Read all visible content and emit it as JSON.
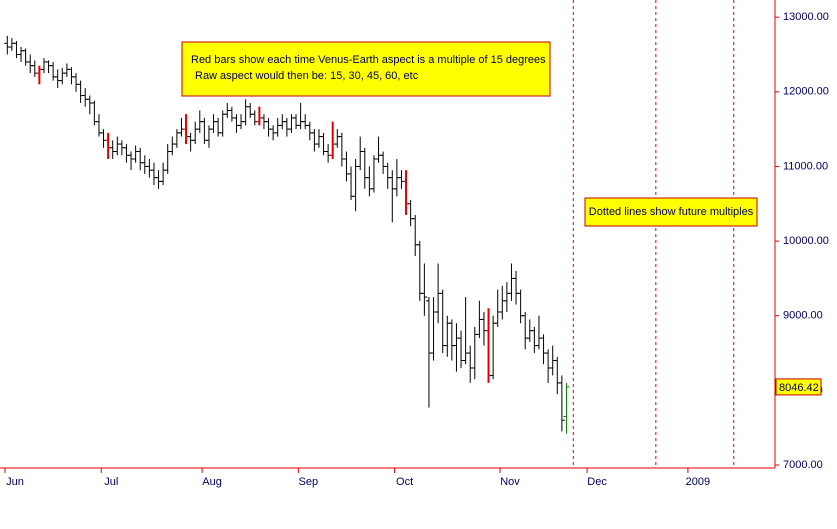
{
  "chart_data": {
    "type": "ohlc",
    "annotations": [
      "Red bars show each time Venus-Earth aspect is a multiple of 15 degrees",
      "Raw aspect would then be: 15, 30, 45, 60, etc",
      "Dotted lines show future multiples"
    ],
    "categories": [
      "Jun",
      null,
      null,
      null,
      null,
      null,
      null,
      null,
      null,
      null,
      null,
      null,
      null,
      null,
      null,
      null,
      null,
      null,
      null,
      null,
      null,
      "Jul",
      null,
      null,
      null,
      null,
      null,
      null,
      null,
      null,
      null,
      null,
      null,
      null,
      null,
      null,
      null,
      null,
      null,
      null,
      null,
      null,
      null,
      "Aug",
      null,
      null,
      null,
      null,
      null,
      null,
      null,
      null,
      null,
      null,
      null,
      null,
      null,
      null,
      null,
      null,
      null,
      null,
      null,
      null,
      "Sep",
      null,
      null,
      null,
      null,
      null,
      null,
      null,
      null,
      null,
      null,
      null,
      null,
      null,
      null,
      null,
      null,
      null,
      null,
      null,
      null,
      "Oct",
      null,
      null,
      null,
      null,
      null,
      null,
      null,
      null,
      null,
      null,
      null,
      null,
      null,
      null,
      null,
      null,
      null,
      null,
      null,
      null,
      null,
      null,
      "Nov",
      null,
      null,
      null,
      null,
      null,
      null,
      null,
      null,
      null,
      null,
      null,
      null,
      null,
      null,
      null,
      null,
      null,
      null,
      "Dec",
      null,
      null,
      null,
      null,
      null,
      null,
      null,
      null,
      null,
      null,
      null,
      null,
      null,
      null,
      null,
      null,
      null,
      null,
      null,
      null,
      null,
      "2009",
      null,
      null,
      null,
      null,
      null,
      null,
      null,
      null,
      null,
      null,
      null,
      null,
      null,
      null,
      null,
      null,
      null,
      null
    ],
    "ohlc": [
      [
        12650,
        12750,
        12500,
        12600
      ],
      [
        12600,
        12720,
        12550,
        12650
      ],
      [
        12650,
        12680,
        12450,
        12500
      ],
      [
        12500,
        12600,
        12400,
        12550
      ],
      [
        12550,
        12580,
        12350,
        12400
      ],
      [
        12400,
        12500,
        12250,
        12350
      ],
      [
        12350,
        12420,
        12200,
        12250
      ],
      [
        12250,
        12350,
        12100,
        12300
      ],
      [
        12300,
        12450,
        12250,
        12400
      ],
      [
        12400,
        12420,
        12250,
        12350
      ],
      [
        12350,
        12400,
        12150,
        12200
      ],
      [
        12200,
        12300,
        12050,
        12150
      ],
      [
        12150,
        12320,
        12100,
        12250
      ],
      [
        12250,
        12380,
        12200,
        12300
      ],
      [
        12300,
        12330,
        12100,
        12200
      ],
      [
        12200,
        12250,
        12000,
        12100
      ],
      [
        12100,
        12150,
        11850,
        11950
      ],
      [
        11950,
        12050,
        11800,
        11900
      ],
      [
        11900,
        11950,
        11700,
        11850
      ],
      [
        11850,
        11880,
        11550,
        11600
      ],
      [
        11600,
        11700,
        11400,
        11450
      ],
      [
        11450,
        11500,
        11250,
        11350
      ],
      [
        11350,
        11450,
        11100,
        11250
      ],
      [
        11250,
        11350,
        11100,
        11200
      ],
      [
        11200,
        11400,
        11150,
        11300
      ],
      [
        11300,
        11350,
        11150,
        11250
      ],
      [
        11250,
        11300,
        11050,
        11150
      ],
      [
        11150,
        11200,
        10950,
        11100
      ],
      [
        11100,
        11280,
        11050,
        11200
      ],
      [
        11200,
        11250,
        10950,
        11050
      ],
      [
        11050,
        11150,
        10900,
        11000
      ],
      [
        11000,
        11100,
        10850,
        10950
      ],
      [
        10950,
        11050,
        10750,
        10850
      ],
      [
        10850,
        10950,
        10700,
        10800
      ],
      [
        10800,
        11050,
        10750,
        10950
      ],
      [
        10950,
        11300,
        10900,
        11200
      ],
      [
        11200,
        11400,
        11150,
        11300
      ],
      [
        11300,
        11500,
        11250,
        11450
      ],
      [
        11450,
        11650,
        11400,
        11500
      ],
      [
        11500,
        11700,
        11300,
        11400
      ],
      [
        11400,
        11450,
        11200,
        11350
      ],
      [
        11350,
        11600,
        11300,
        11500
      ],
      [
        11500,
        11750,
        11450,
        11600
      ],
      [
        11600,
        11650,
        11300,
        11350
      ],
      [
        11350,
        11550,
        11250,
        11500
      ],
      [
        11500,
        11700,
        11450,
        11600
      ],
      [
        11600,
        11650,
        11400,
        11450
      ],
      [
        11450,
        11750,
        11400,
        11700
      ],
      [
        11700,
        11850,
        11650,
        11750
      ],
      [
        11750,
        11800,
        11600,
        11650
      ],
      [
        11650,
        11700,
        11450,
        11550
      ],
      [
        11550,
        11700,
        11500,
        11600
      ],
      [
        11600,
        11900,
        11550,
        11800
      ],
      [
        11800,
        11850,
        11650,
        11700
      ],
      [
        11700,
        11750,
        11550,
        11600
      ],
      [
        11600,
        11800,
        11550,
        11650
      ],
      [
        11650,
        11700,
        11500,
        11600
      ],
      [
        11600,
        11650,
        11400,
        11500
      ],
      [
        11500,
        11550,
        11350,
        11450
      ],
      [
        11450,
        11650,
        11400,
        11550
      ],
      [
        11550,
        11700,
        11500,
        11600
      ],
      [
        11600,
        11650,
        11400,
        11500
      ],
      [
        11500,
        11700,
        11450,
        11650
      ],
      [
        11650,
        11700,
        11500,
        11550
      ],
      [
        11550,
        11850,
        11500,
        11600
      ],
      [
        11600,
        11700,
        11500,
        11550
      ],
      [
        11550,
        11600,
        11350,
        11450
      ],
      [
        11450,
        11500,
        11200,
        11300
      ],
      [
        11300,
        11500,
        11250,
        11400
      ],
      [
        11400,
        11450,
        11150,
        11200
      ],
      [
        11200,
        11300,
        11050,
        11150
      ],
      [
        11150,
        11600,
        11100,
        11300
      ],
      [
        11300,
        11500,
        11250,
        11400
      ],
      [
        11400,
        11450,
        11000,
        11100
      ],
      [
        11100,
        11200,
        10800,
        10900
      ],
      [
        10900,
        11000,
        10550,
        10600
      ],
      [
        10600,
        11100,
        10400,
        11000
      ],
      [
        11000,
        11400,
        10950,
        11200
      ],
      [
        11200,
        11250,
        10700,
        10850
      ],
      [
        10850,
        11000,
        10600,
        10700
      ],
      [
        10700,
        11150,
        10650,
        11100
      ],
      [
        11100,
        11400,
        11050,
        11150
      ],
      [
        11150,
        11200,
        10900,
        11000
      ],
      [
        11000,
        11050,
        10700,
        10850
      ],
      [
        10850,
        10950,
        10250,
        10700
      ],
      [
        10700,
        11100,
        10600,
        10850
      ],
      [
        10850,
        10950,
        10700,
        10800
      ],
      [
        10800,
        10950,
        10350,
        10500
      ],
      [
        10500,
        10550,
        10200,
        10300
      ],
      [
        10300,
        10350,
        9800,
        9950
      ],
      [
        9950,
        10000,
        9200,
        9300
      ],
      [
        9300,
        9700,
        9000,
        9250
      ],
      [
        9200,
        9250,
        7770,
        8500
      ],
      [
        8500,
        9250,
        8400,
        9050
      ],
      [
        9050,
        9700,
        8900,
        9300
      ],
      [
        9300,
        9350,
        8500,
        8600
      ],
      [
        8600,
        9000,
        8450,
        8900
      ],
      [
        8900,
        8950,
        8400,
        8600
      ],
      [
        8600,
        8900,
        8250,
        8700
      ],
      [
        8700,
        8800,
        8300,
        8400
      ],
      [
        8400,
        9250,
        8350,
        8500
      ],
      [
        8500,
        8600,
        8100,
        8300
      ],
      [
        8300,
        8850,
        8150,
        8750
      ],
      [
        8750,
        9200,
        8700,
        8950
      ],
      [
        8950,
        9050,
        8600,
        8800
      ],
      [
        8800,
        9100,
        8100,
        8200
      ],
      [
        8200,
        9000,
        8150,
        8900
      ],
      [
        8900,
        9350,
        8850,
        9050
      ],
      [
        9050,
        9400,
        8950,
        9200
      ],
      [
        9200,
        9450,
        9050,
        9300
      ],
      [
        9300,
        9700,
        9200,
        9500
      ],
      [
        9500,
        9600,
        9150,
        9300
      ],
      [
        9300,
        9350,
        8900,
        9000
      ],
      [
        9000,
        9050,
        8550,
        8700
      ],
      [
        8700,
        8950,
        8650,
        8800
      ],
      [
        8800,
        8850,
        8500,
        8600
      ],
      [
        8600,
        9000,
        8550,
        8700
      ],
      [
        8700,
        8750,
        8350,
        8500
      ],
      [
        8500,
        8550,
        8100,
        8300
      ],
      [
        8300,
        8600,
        8200,
        8400
      ],
      [
        8400,
        8450,
        7950,
        8100
      ],
      [
        8100,
        8200,
        7450,
        7600
      ],
      [
        7650,
        8100,
        7420,
        8046.42
      ],
      null,
      null,
      null,
      null,
      null,
      null,
      null,
      null,
      null,
      null,
      null,
      null,
      null,
      null,
      null,
      null,
      null,
      null,
      null,
      null,
      null,
      null,
      null,
      null,
      null,
      null,
      null,
      null,
      null,
      null,
      null,
      null,
      null,
      null,
      null,
      null,
      null,
      null,
      null,
      null,
      null,
      null,
      null,
      null,
      null,
      null,
      null
    ],
    "color": "#000000",
    "aspect_color": "#e00000",
    "last_color": "#008000",
    "aspect_bars": [
      7,
      22,
      39,
      55,
      71,
      87,
      105
    ],
    "future_aspects": [
      124,
      142,
      159
    ],
    "ylim": [
      6960,
      13230
    ],
    "yticks": [
      {
        "value": 7000,
        "label": "7000.00"
      },
      {
        "value": 8000,
        "label": "8000.00"
      },
      {
        "value": 9000,
        "label": "9000.00"
      },
      {
        "value": 10000,
        "label": "10000.00"
      },
      {
        "value": 11000,
        "label": "11000.00"
      },
      {
        "value": 12000,
        "label": "12000.00"
      },
      {
        "value": 13000,
        "label": "13000.00"
      }
    ]
  }
}
